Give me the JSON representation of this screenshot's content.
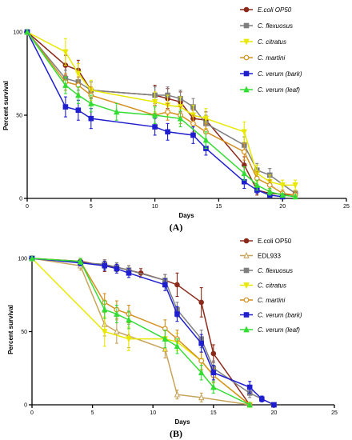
{
  "chart_data": [
    {
      "type": "line",
      "panel_label": "(A)",
      "xlabel": "Days",
      "ylabel": "Percent survival",
      "xlim": [
        0,
        25
      ],
      "ylim": [
        0,
        100
      ],
      "x_ticks": [
        "0",
        "5",
        "10",
        "15",
        "20",
        "25"
      ],
      "y_ticks": [
        "0",
        "50",
        "100"
      ],
      "legend_position": "top-right",
      "series": [
        {
          "name": "E.coli OP50",
          "italic": true,
          "color": "#8b2a1a",
          "marker": "circle",
          "points": [
            [
              0,
              100
            ],
            [
              3,
              80
            ],
            [
              4,
              77
            ],
            [
              5,
              65
            ],
            [
              10,
              62
            ],
            [
              11,
              60
            ],
            [
              12,
              58
            ],
            [
              13,
              48
            ],
            [
              14,
              47
            ],
            [
              17,
              20
            ],
            [
              18,
              5
            ],
            [
              19,
              3
            ],
            [
              21,
              2
            ]
          ],
          "err": [
            0,
            6,
            6,
            5,
            6,
            6,
            6,
            5,
            5,
            5,
            3,
            2,
            2
          ]
        },
        {
          "name": "C. flexuosus",
          "italic": true,
          "color": "#7f7f7f",
          "marker": "square",
          "points": [
            [
              0,
              100
            ],
            [
              3,
              72
            ],
            [
              4,
              70
            ],
            [
              5,
              65
            ],
            [
              10,
              62
            ],
            [
              11,
              62
            ],
            [
              12,
              60
            ],
            [
              13,
              55
            ],
            [
              14,
              45
            ],
            [
              17,
              32
            ],
            [
              18,
              17
            ],
            [
              19,
              14
            ],
            [
              21,
              3
            ]
          ],
          "err": [
            0,
            5,
            5,
            5,
            5,
            5,
            5,
            5,
            5,
            5,
            4,
            4,
            2
          ]
        },
        {
          "name": "C. citratus",
          "italic": true,
          "color": "#e8e800",
          "marker": "triangle-down",
          "points": [
            [
              0,
              100
            ],
            [
              3,
              88
            ],
            [
              4,
              75
            ],
            [
              5,
              65
            ],
            [
              10,
              58
            ],
            [
              11,
              56
            ],
            [
              12,
              55
            ],
            [
              13,
              50
            ],
            [
              14,
              48
            ],
            [
              17,
              40
            ],
            [
              18,
              15
            ],
            [
              19,
              10
            ],
            [
              20,
              8
            ],
            [
              21,
              8
            ]
          ],
          "err": [
            0,
            8,
            6,
            6,
            6,
            6,
            6,
            6,
            6,
            6,
            5,
            4,
            3,
            3
          ]
        },
        {
          "name": "C. martini",
          "italic": true,
          "color": "#d4901c",
          "marker": "circle-open",
          "points": [
            [
              0,
              100
            ],
            [
              3,
              70
            ],
            [
              4,
              68
            ],
            [
              5,
              62
            ],
            [
              10,
              50
            ],
            [
              11,
              52
            ],
            [
              12,
              50
            ],
            [
              13,
              45
            ],
            [
              14,
              40
            ],
            [
              17,
              28
            ],
            [
              18,
              12
            ],
            [
              19,
              8
            ],
            [
              20,
              3
            ],
            [
              21,
              2
            ]
          ],
          "err": [
            0,
            5,
            5,
            5,
            5,
            5,
            5,
            5,
            5,
            5,
            4,
            3,
            2,
            2
          ]
        },
        {
          "name": "C. verum (bark)",
          "italic": true,
          "color": "#1f1fd0",
          "marker": "square",
          "points": [
            [
              0,
              100
            ],
            [
              3,
              55
            ],
            [
              4,
              53
            ],
            [
              5,
              48
            ],
            [
              10,
              43
            ],
            [
              11,
              40
            ],
            [
              13,
              38
            ],
            [
              14,
              30
            ],
            [
              17,
              10
            ],
            [
              18,
              5
            ],
            [
              19,
              2
            ],
            [
              20,
              1
            ]
          ],
          "err": [
            0,
            6,
            6,
            6,
            5,
            5,
            5,
            4,
            4,
            2,
            1,
            1
          ]
        },
        {
          "name": "C. verum (leaf)",
          "italic": true,
          "color": "#33dd33",
          "marker": "triangle-up",
          "points": [
            [
              0,
              100
            ],
            [
              3,
              68
            ],
            [
              4,
              62
            ],
            [
              5,
              57
            ],
            [
              7,
              52
            ],
            [
              10,
              50
            ],
            [
              12,
              48
            ],
            [
              14,
              35
            ],
            [
              17,
              15
            ],
            [
              18,
              8
            ],
            [
              19,
              4
            ],
            [
              20,
              2
            ],
            [
              21,
              1
            ]
          ],
          "err": [
            0,
            5,
            5,
            5,
            5,
            5,
            5,
            5,
            4,
            3,
            2,
            1,
            1
          ]
        }
      ]
    },
    {
      "type": "line",
      "panel_label": "(B)",
      "xlabel": "Days",
      "ylabel": "Percent survival",
      "xlim": [
        0,
        25
      ],
      "ylim": [
        0,
        100
      ],
      "x_ticks": [
        "0",
        "5",
        "10",
        "15",
        "20",
        "25"
      ],
      "y_ticks": [
        "0",
        "50",
        "100"
      ],
      "legend_position": "top-right",
      "series": [
        {
          "name": "E.coli OP50",
          "italic": false,
          "color": "#8b2a1a",
          "marker": "circle",
          "points": [
            [
              0,
              100
            ],
            [
              4,
              98
            ],
            [
              6,
              95
            ],
            [
              7,
              94
            ],
            [
              8,
              92
            ],
            [
              9,
              90
            ],
            [
              11,
              85
            ],
            [
              12,
              82
            ],
            [
              14,
              70
            ],
            [
              15,
              35
            ],
            [
              18,
              0
            ]
          ],
          "err": [
            0,
            2,
            4,
            3,
            3,
            3,
            4,
            8,
            10,
            6,
            0
          ]
        },
        {
          "name": "EDL933",
          "italic": false,
          "color": "#c8a35a",
          "marker": "triangle-up-open",
          "points": [
            [
              0,
              100
            ],
            [
              4,
              95
            ],
            [
              6,
              55
            ],
            [
              7,
              50
            ],
            [
              8,
              47
            ],
            [
              11,
              38
            ],
            [
              12,
              7
            ],
            [
              14,
              5
            ],
            [
              18,
              0
            ]
          ],
          "err": [
            0,
            3,
            8,
            8,
            8,
            6,
            3,
            3,
            0
          ]
        },
        {
          "name": "C. flexuosus",
          "italic": true,
          "color": "#7f7f7f",
          "marker": "square",
          "points": [
            [
              0,
              100
            ],
            [
              4,
              97
            ],
            [
              6,
              96
            ],
            [
              7,
              94
            ],
            [
              8,
              92
            ],
            [
              11,
              85
            ],
            [
              12,
              65
            ],
            [
              14,
              45
            ],
            [
              15,
              25
            ],
            [
              18,
              8
            ],
            [
              20,
              0
            ]
          ],
          "err": [
            0,
            2,
            3,
            3,
            3,
            4,
            5,
            6,
            5,
            3,
            0
          ]
        },
        {
          "name": "C. citratus",
          "italic": true,
          "color": "#e8e800",
          "marker": "triangle-down",
          "points": [
            [
              0,
              100
            ],
            [
              6,
              50
            ],
            [
              8,
              45
            ],
            [
              11,
              45
            ],
            [
              12,
              43
            ],
            [
              14,
              30
            ],
            [
              15,
              20
            ],
            [
              18,
              0
            ]
          ],
          "err": [
            0,
            10,
            8,
            8,
            6,
            6,
            5,
            0
          ]
        },
        {
          "name": "C. martini",
          "italic": true,
          "color": "#d4901c",
          "marker": "circle-open",
          "points": [
            [
              0,
              100
            ],
            [
              4,
              98
            ],
            [
              6,
              70
            ],
            [
              7,
              65
            ],
            [
              8,
              62
            ],
            [
              11,
              52
            ],
            [
              12,
              45
            ],
            [
              14,
              30
            ],
            [
              15,
              20
            ],
            [
              18,
              0
            ]
          ],
          "err": [
            0,
            2,
            6,
            6,
            6,
            6,
            6,
            6,
            5,
            0
          ]
        },
        {
          "name": "C. verum (bark)",
          "italic": true,
          "color": "#1f1fd0",
          "marker": "square",
          "points": [
            [
              0,
              100
            ],
            [
              4,
              97
            ],
            [
              6,
              95
            ],
            [
              7,
              93
            ],
            [
              8,
              90
            ],
            [
              11,
              82
            ],
            [
              12,
              62
            ],
            [
              14,
              42
            ],
            [
              15,
              22
            ],
            [
              18,
              12
            ],
            [
              19,
              4
            ],
            [
              20,
              0
            ]
          ],
          "err": [
            0,
            2,
            3,
            3,
            3,
            4,
            5,
            6,
            5,
            4,
            2,
            0
          ]
        },
        {
          "name": "C. verum (leaf)",
          "italic": true,
          "color": "#33dd33",
          "marker": "triangle-up",
          "points": [
            [
              0,
              100
            ],
            [
              4,
              98
            ],
            [
              6,
              65
            ],
            [
              7,
              62
            ],
            [
              8,
              58
            ],
            [
              11,
              45
            ],
            [
              12,
              40
            ],
            [
              14,
              22
            ],
            [
              15,
              12
            ],
            [
              18,
              0
            ]
          ],
          "err": [
            0,
            2,
            6,
            6,
            6,
            6,
            5,
            5,
            4,
            0
          ]
        }
      ]
    }
  ]
}
